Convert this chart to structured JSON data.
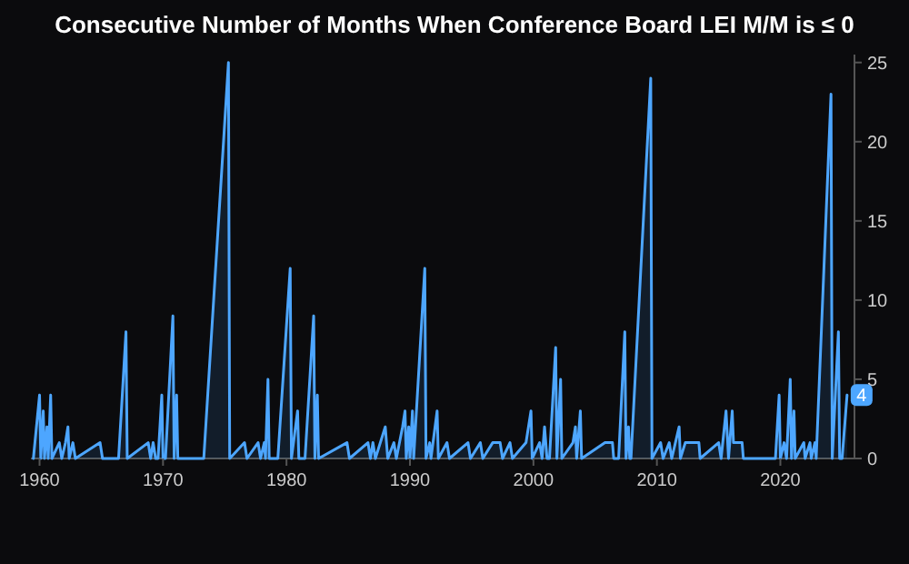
{
  "chart_data": {
    "type": "area",
    "title": "Consecutive Number of Months When Conference Board LEI M/M is ≤ 0",
    "x": [
      1959.5,
      1960.0,
      1960.1,
      1960.3,
      1960.4,
      1960.6,
      1960.7,
      1960.9,
      1961.0,
      1961.6,
      1961.8,
      1962.1,
      1962.3,
      1962.4,
      1962.7,
      1962.9,
      1964.9,
      1965.1,
      1966.4,
      1967.0,
      1967.1,
      1968.8,
      1969.0,
      1969.2,
      1969.4,
      1969.6,
      1969.9,
      1970.0,
      1970.2,
      1970.8,
      1970.9,
      1971.1,
      1971.2,
      1973.3,
      1975.3,
      1975.4,
      1976.6,
      1976.8,
      1977.7,
      1977.9,
      1978.2,
      1978.3,
      1978.5,
      1978.6,
      1979.3,
      1980.3,
      1980.4,
      1980.9,
      1981.0,
      1981.5,
      1982.2,
      1982.3,
      1982.5,
      1982.6,
      1984.9,
      1985.1,
      1986.6,
      1986.8,
      1987.0,
      1987.2,
      1988.0,
      1988.2,
      1988.7,
      1988.9,
      1989.4,
      1989.6,
      1989.7,
      1989.9,
      1990.0,
      1990.2,
      1990.3,
      1991.2,
      1991.3,
      1991.6,
      1991.7,
      1992.2,
      1992.3,
      1993.0,
      1993.2,
      1994.7,
      1994.9,
      1995.7,
      1995.9,
      1996.7,
      1997.0,
      1997.3,
      1997.5,
      1998.1,
      1998.3,
      1999.4,
      1999.8,
      1999.9,
      2000.5,
      2000.7,
      2000.9,
      2001.1,
      2001.3,
      2001.8,
      2001.9,
      2002.2,
      2002.3,
      2003.2,
      2003.4,
      2003.5,
      2003.8,
      2003.9,
      2005.8,
      2006.4,
      2006.5,
      2006.9,
      2007.4,
      2007.5,
      2007.7,
      2007.8,
      2007.9,
      2009.5,
      2009.6,
      2010.3,
      2010.5,
      2011.0,
      2011.2,
      2011.8,
      2011.9,
      2012.3,
      2013.4,
      2013.5,
      2015.0,
      2015.2,
      2015.6,
      2015.8,
      2016.1,
      2016.2,
      2016.9,
      2017.0,
      2019.6,
      2019.9,
      2020.0,
      2020.3,
      2020.5,
      2020.8,
      2020.9,
      2021.1,
      2021.2,
      2021.9,
      2022.0,
      2022.4,
      2022.5,
      2022.8,
      2022.9,
      2024.1,
      2024.2,
      2024.7,
      2024.8,
      2025.0,
      2025.4
    ],
    "series": [
      {
        "color": "#4da6ff",
        "values": [
          0,
          4,
          0,
          3,
          0,
          2,
          0,
          4,
          0,
          1,
          0,
          1,
          2,
          0,
          1,
          0,
          1,
          0,
          0,
          8,
          0,
          1,
          0,
          1,
          0,
          0,
          4,
          0,
          0,
          9,
          0,
          4,
          0,
          0,
          25,
          0,
          1,
          0,
          1,
          0,
          1,
          0,
          5,
          0,
          0,
          12,
          0,
          3,
          0,
          0,
          9,
          0,
          4,
          0,
          1,
          0,
          1,
          0,
          1,
          0,
          2,
          0,
          1,
          0,
          2,
          3,
          0,
          2,
          0,
          3,
          0,
          12,
          0,
          1,
          0,
          3,
          0,
          1,
          0,
          1,
          0,
          1,
          0,
          1,
          1,
          1,
          0,
          1,
          0,
          1,
          3,
          0,
          1,
          0,
          2,
          0,
          0,
          7,
          0,
          5,
          0,
          1,
          2,
          0,
          3,
          0,
          1,
          1,
          0,
          0,
          8,
          0,
          2,
          0,
          0,
          24,
          0,
          1,
          0,
          1,
          0,
          2,
          0,
          1,
          1,
          0,
          1,
          0,
          3,
          0,
          3,
          1,
          1,
          0,
          0,
          4,
          0,
          1,
          0,
          5,
          0,
          3,
          0,
          1,
          0,
          1,
          0,
          1,
          0,
          23,
          0,
          8,
          0,
          0,
          4
        ]
      }
    ],
    "xlim": [
      1959.3,
      2026.0
    ],
    "xticks": [
      1960,
      1970,
      1980,
      1990,
      2000,
      2010,
      2020
    ],
    "ylim": [
      0,
      25.5
    ],
    "yticks": [
      0,
      5,
      10,
      15,
      20,
      25
    ],
    "annotations": [
      {
        "text": "4",
        "x": 2025.4,
        "y": 4
      }
    ]
  }
}
